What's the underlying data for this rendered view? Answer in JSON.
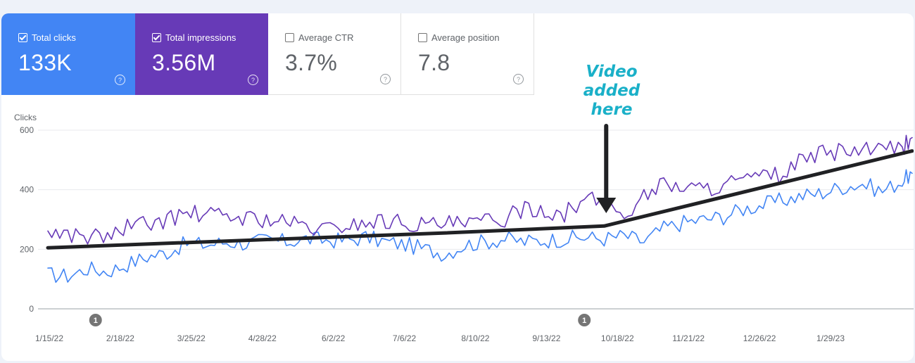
{
  "metrics": [
    {
      "label": "Total clicks",
      "value": "133K",
      "checked": true,
      "color": "#4285f4"
    },
    {
      "label": "Total impressions",
      "value": "3.56M",
      "checked": true,
      "color": "#673ab7"
    },
    {
      "label": "Average CTR",
      "value": "3.7%",
      "checked": false
    },
    {
      "label": "Average position",
      "value": "7.8",
      "checked": false
    }
  ],
  "help_glyph": "?",
  "annotation": {
    "line1": "Video",
    "line2": "added",
    "line3": "here"
  },
  "event_markers": [
    "1",
    "1"
  ],
  "chart_data": {
    "type": "line",
    "ylabel": "Clicks",
    "ylim": [
      0,
      600
    ],
    "yticks": [
      0,
      200,
      400,
      600
    ],
    "x_tick_labels": [
      "1/15/22",
      "2/18/22",
      "3/25/22",
      "4/28/22",
      "6/2/22",
      "7/6/22",
      "8/10/22",
      "9/13/22",
      "10/18/22",
      "11/21/22",
      "12/26/22",
      "1/29/23"
    ],
    "x_range_days": [
      0,
      435
    ],
    "series": [
      {
        "color": "#4285f4",
        "role": "Total clicks",
        "points": [
          [
            0,
            115
          ],
          [
            10,
            110
          ],
          [
            20,
            135
          ],
          [
            30,
            125
          ],
          [
            40,
            150
          ],
          [
            50,
            175
          ],
          [
            60,
            190
          ],
          [
            70,
            220
          ],
          [
            80,
            215
          ],
          [
            90,
            225
          ],
          [
            100,
            220
          ],
          [
            110,
            230
          ],
          [
            120,
            225
          ],
          [
            130,
            235
          ],
          [
            140,
            230
          ],
          [
            150,
            230
          ],
          [
            160,
            240
          ],
          [
            170,
            225
          ],
          [
            180,
            215
          ],
          [
            190,
            200
          ],
          [
            200,
            185
          ],
          [
            210,
            215
          ],
          [
            220,
            225
          ],
          [
            230,
            235
          ],
          [
            240,
            225
          ],
          [
            250,
            230
          ],
          [
            260,
            235
          ],
          [
            270,
            240
          ],
          [
            280,
            235
          ],
          [
            290,
            245
          ],
          [
            300,
            225
          ],
          [
            310,
            270
          ],
          [
            320,
            290
          ],
          [
            330,
            300
          ],
          [
            340,
            310
          ],
          [
            350,
            335
          ],
          [
            360,
            350
          ],
          [
            370,
            365
          ],
          [
            380,
            380
          ],
          [
            390,
            390
          ],
          [
            400,
            410
          ],
          [
            410,
            420
          ],
          [
            420,
            395
          ],
          [
            430,
            430
          ],
          [
            435,
            455
          ]
        ]
      },
      {
        "color": "#673ab7",
        "role": "Total impressions",
        "points": [
          [
            0,
            260
          ],
          [
            10,
            250
          ],
          [
            20,
            245
          ],
          [
            30,
            240
          ],
          [
            40,
            275
          ],
          [
            50,
            285
          ],
          [
            60,
            300
          ],
          [
            70,
            320
          ],
          [
            80,
            315
          ],
          [
            90,
            310
          ],
          [
            100,
            305
          ],
          [
            110,
            300
          ],
          [
            120,
            290
          ],
          [
            130,
            275
          ],
          [
            140,
            265
          ],
          [
            150,
            280
          ],
          [
            160,
            290
          ],
          [
            170,
            295
          ],
          [
            180,
            290
          ],
          [
            190,
            280
          ],
          [
            200,
            285
          ],
          [
            210,
            280
          ],
          [
            220,
            295
          ],
          [
            230,
            300
          ],
          [
            240,
            340
          ],
          [
            250,
            330
          ],
          [
            260,
            320
          ],
          [
            270,
            360
          ],
          [
            280,
            370
          ],
          [
            290,
            310
          ],
          [
            300,
            380
          ],
          [
            310,
            420
          ],
          [
            320,
            410
          ],
          [
            330,
            400
          ],
          [
            340,
            420
          ],
          [
            350,
            430
          ],
          [
            360,
            440
          ],
          [
            370,
            450
          ],
          [
            380,
            500
          ],
          [
            390,
            520
          ],
          [
            400,
            530
          ],
          [
            410,
            530
          ],
          [
            420,
            530
          ],
          [
            430,
            540
          ],
          [
            435,
            575
          ]
        ]
      },
      {
        "color": "#202124",
        "role": "trend",
        "points": [
          [
            0,
            205
          ],
          [
            100,
            230
          ],
          [
            200,
            255
          ],
          [
            280,
            278
          ],
          [
            435,
            530
          ]
        ]
      }
    ],
    "annotation_arrow_day": 281,
    "event_marker_days": [
      24,
      270
    ],
    "grid": true
  }
}
